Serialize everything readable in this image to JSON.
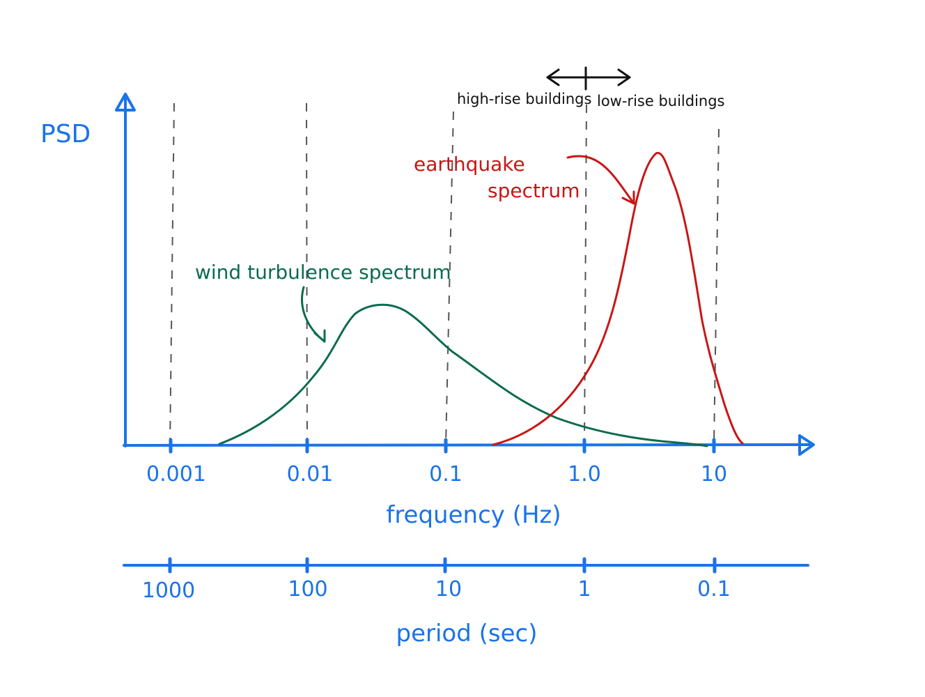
{
  "colors": {
    "axis": "#1a73e8",
    "wind": "#0b6b4f",
    "earthquake": "#c91515",
    "annotation": "#111111",
    "gridline": "#555555"
  },
  "psd_label": "PSD",
  "frequency_axis": {
    "title": "frequency (Hz)",
    "ticks": [
      "0.001",
      "0.01",
      "0.1",
      "1.0",
      "10"
    ]
  },
  "period_axis": {
    "title": "period (sec)",
    "ticks": [
      "1000",
      "100",
      "10",
      "1",
      "0.1"
    ]
  },
  "annotations": {
    "high_rise": "high-rise buildings",
    "low_rise": "low-rise buildings",
    "wind_label": "wind turbulence spectrum",
    "earthquake_label_line1": "earthquake",
    "earthquake_label_line2": "spectrum"
  }
}
